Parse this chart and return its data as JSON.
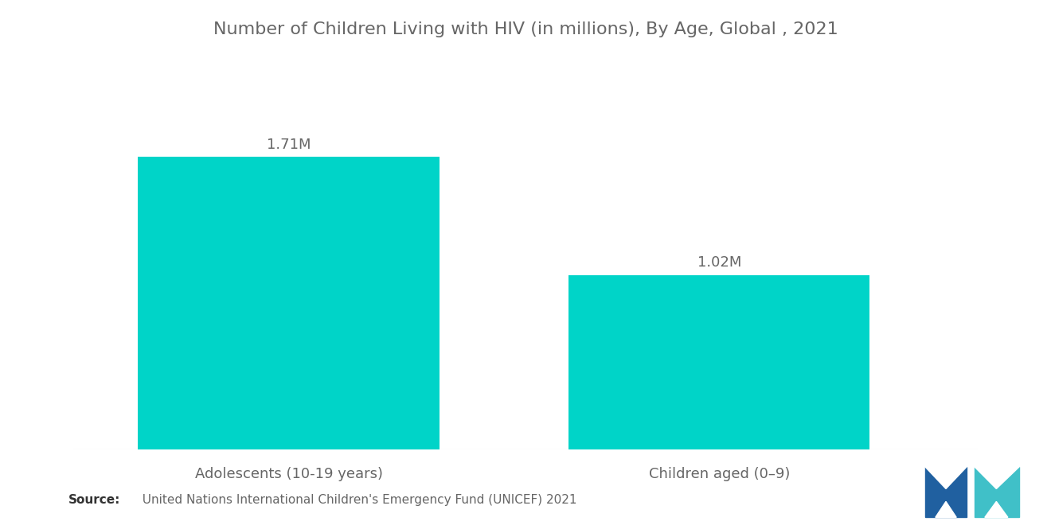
{
  "title": "Number of Children Living with HIV (in millions), By Age, Global , 2021",
  "categories": [
    "Adolescents (10-19 years)",
    "Children aged (0–9)"
  ],
  "values": [
    1.71,
    1.02
  ],
  "labels": [
    "1.71M",
    "1.02M"
  ],
  "bar_color": "#00D4C8",
  "background_color": "#ffffff",
  "title_fontsize": 16,
  "label_fontsize": 13,
  "category_fontsize": 13,
  "source_bold": "Source:",
  "source_text": "  United Nations International Children's Emergency Fund (UNICEF) 2021",
  "source_fontsize": 11,
  "ylim": [
    0,
    2.1
  ],
  "x_positions": [
    1,
    3
  ],
  "bar_width": 1.4,
  "xlim": [
    0,
    4.2
  ]
}
